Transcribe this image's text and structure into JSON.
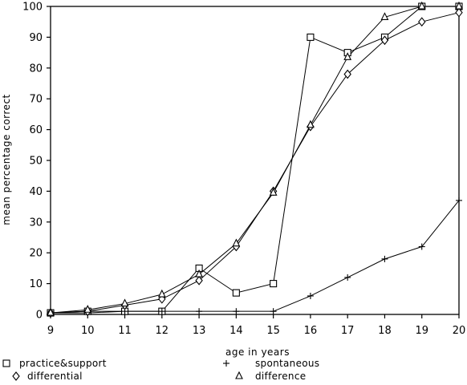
{
  "chart_data": {
    "type": "line",
    "title": "",
    "xlabel": "age in years",
    "ylabel": "mean percentage correct",
    "x": [
      9,
      10,
      11,
      12,
      13,
      14,
      15,
      16,
      17,
      18,
      19,
      20
    ],
    "xlim": [
      9,
      20
    ],
    "ylim": [
      0,
      100
    ],
    "xticks": [
      9,
      10,
      11,
      12,
      13,
      14,
      15,
      16,
      17,
      18,
      19,
      20
    ],
    "yticks": [
      0,
      10,
      20,
      30,
      40,
      50,
      60,
      70,
      80,
      90,
      100
    ],
    "grid": false,
    "legend_position": "bottom",
    "series": [
      {
        "name": "practice&support",
        "marker": "square",
        "values": [
          0.5,
          1,
          1,
          1,
          15,
          7,
          10,
          90,
          85,
          90,
          100,
          100
        ]
      },
      {
        "name": "spontaneous",
        "marker": "plus",
        "values": [
          0.5,
          0.5,
          1,
          1,
          1,
          1,
          1,
          6,
          12,
          18,
          22,
          37
        ]
      },
      {
        "name": "differential",
        "marker": "diamond",
        "values": [
          0.5,
          1,
          3,
          5,
          11,
          22,
          40,
          61,
          78,
          89,
          95,
          98
        ]
      },
      {
        "name": "difference",
        "marker": "triangle",
        "values": [
          0.5,
          1.5,
          3.5,
          6.5,
          13,
          23,
          39.5,
          61.5,
          83.5,
          96.5,
          100,
          100
        ]
      }
    ]
  }
}
